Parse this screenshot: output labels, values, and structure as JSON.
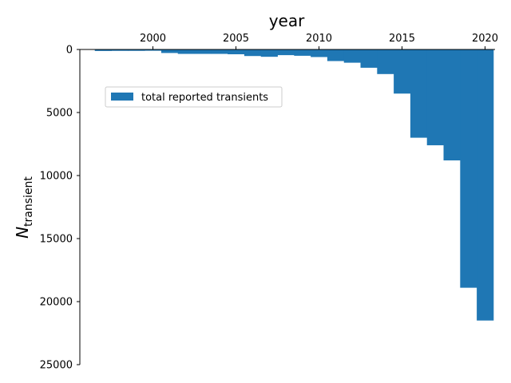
{
  "chart_data": {
    "type": "bar",
    "xlabel": "year",
    "ylabel_main": "N",
    "ylabel_sub": "transient",
    "x_position": "top",
    "y_inverted": true,
    "xlim": [
      1995.6,
      2020.6
    ],
    "ylim": [
      0,
      25000
    ],
    "xticks": [
      2000,
      2005,
      2010,
      2015,
      2020
    ],
    "yticks": [
      0,
      5000,
      10000,
      15000,
      20000,
      25000
    ],
    "grid": false,
    "legend_position": "upper-left",
    "series": [
      {
        "name": "total reported transients",
        "color": "#1f77b4",
        "x": [
          1997,
          1998,
          1999,
          2000,
          2001,
          2002,
          2003,
          2004,
          2005,
          2006,
          2007,
          2008,
          2009,
          2010,
          2011,
          2012,
          2013,
          2014,
          2015,
          2016,
          2017,
          2018,
          2019,
          2020
        ],
        "values": [
          120,
          110,
          110,
          100,
          280,
          350,
          350,
          350,
          380,
          520,
          580,
          450,
          500,
          600,
          920,
          1050,
          1450,
          1950,
          3500,
          7000,
          7600,
          8800,
          18900,
          21500
        ]
      }
    ]
  }
}
